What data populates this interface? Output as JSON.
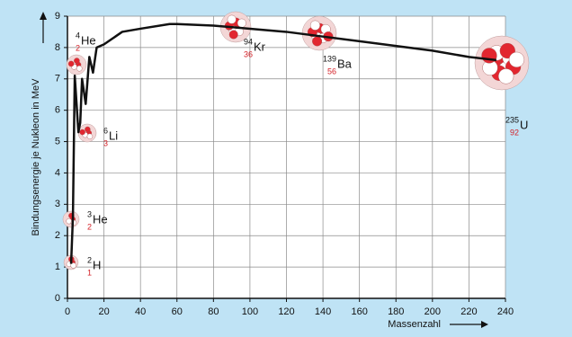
{
  "chart_data": {
    "type": "line",
    "y_label": "Bindungsenergie je Nukleon in MeV",
    "x_label": "Massenzahl",
    "x": [
      2,
      3,
      4,
      6,
      7,
      8,
      10,
      12,
      14,
      16,
      20,
      30,
      40,
      56,
      60,
      80,
      100,
      120,
      140,
      160,
      180,
      200,
      220,
      235
    ],
    "values": [
      1.1,
      2.6,
      7.1,
      5.3,
      5.6,
      7.0,
      6.2,
      7.7,
      7.2,
      8.0,
      8.1,
      8.5,
      8.6,
      8.75,
      8.75,
      8.7,
      8.6,
      8.5,
      8.35,
      8.2,
      8.05,
      7.9,
      7.7,
      7.6
    ],
    "color": "#111111",
    "xlim": [
      0,
      240
    ],
    "xticks": [
      0,
      20,
      40,
      60,
      80,
      100,
      120,
      140,
      160,
      180,
      200,
      220,
      240
    ],
    "ylim": [
      0,
      9
    ],
    "yticks": [
      0,
      1,
      2,
      3,
      4,
      5,
      6,
      7,
      8,
      9
    ],
    "grid": true,
    "annotations": [
      {
        "mass": "2",
        "atomic": "1",
        "symbol": "H"
      },
      {
        "mass": "3",
        "atomic": "2",
        "symbol": "He"
      },
      {
        "mass": "4",
        "atomic": "2",
        "symbol": "He"
      },
      {
        "mass": "6",
        "atomic": "3",
        "symbol": "Li"
      },
      {
        "mass": "94",
        "atomic": "36",
        "symbol": "Kr"
      },
      {
        "mass": "139",
        "atomic": "56",
        "symbol": "Ba"
      },
      {
        "mass": "235",
        "atomic": "92",
        "symbol": "U"
      }
    ]
  }
}
